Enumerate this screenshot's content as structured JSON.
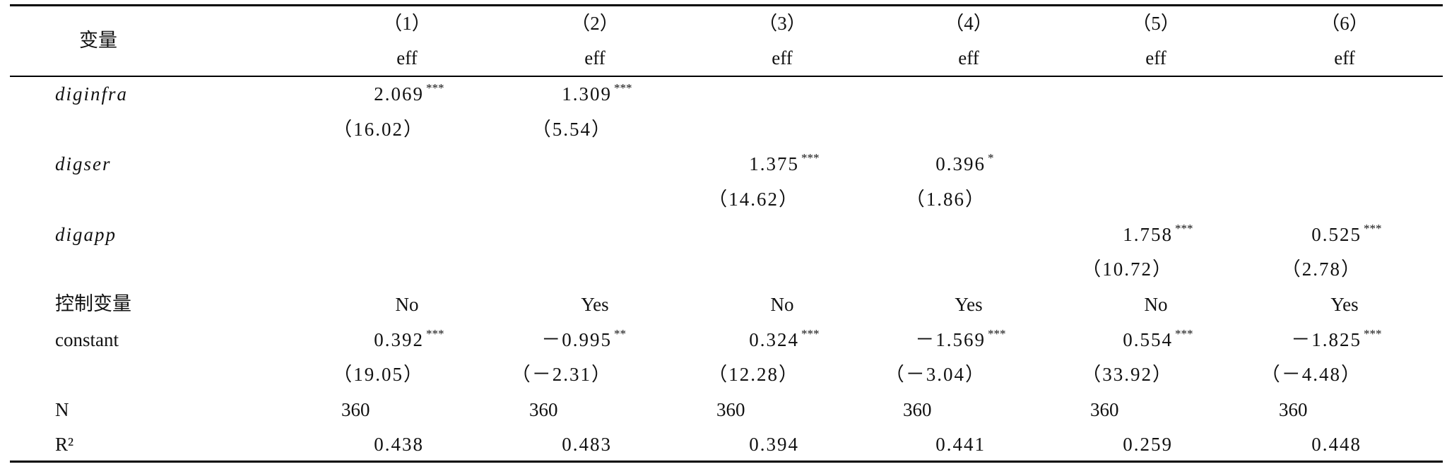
{
  "header": {
    "label": "变量",
    "columns": [
      {
        "number": "（1）",
        "dependent": "eff"
      },
      {
        "number": "（2）",
        "dependent": "eff"
      },
      {
        "number": "（3）",
        "dependent": "eff"
      },
      {
        "number": "（4）",
        "dependent": "eff"
      },
      {
        "number": "（5）",
        "dependent": "eff"
      },
      {
        "number": "（6）",
        "dependent": "eff"
      }
    ]
  },
  "rows": [
    {
      "label": "diginfra",
      "italic": true,
      "cells": [
        {
          "value": "2.069",
          "stars": "***"
        },
        {
          "value": "1.309",
          "stars": "***"
        },
        null,
        null,
        null,
        null
      ]
    },
    {
      "cells": [
        {
          "value": "（16.02）"
        },
        {
          "value": "（5.54）"
        },
        null,
        null,
        null,
        null
      ]
    },
    {
      "label": "digser",
      "italic": true,
      "cells": [
        null,
        null,
        {
          "value": "1.375",
          "stars": "***"
        },
        {
          "value": "0.396",
          "stars": "*"
        },
        null,
        null
      ]
    },
    {
      "cells": [
        null,
        null,
        {
          "value": "（14.62）"
        },
        {
          "value": "（1.86）"
        },
        null,
        null
      ]
    },
    {
      "label": "digapp",
      "italic": true,
      "cells": [
        null,
        null,
        null,
        null,
        {
          "value": "1.758",
          "stars": "***"
        },
        {
          "value": "0.525",
          "stars": "***"
        }
      ]
    },
    {
      "cells": [
        null,
        null,
        null,
        null,
        {
          "value": "（10.72）"
        },
        {
          "value": "（2.78）"
        }
      ]
    },
    {
      "label": "控制变量",
      "align": "center",
      "cells": [
        {
          "value": "No"
        },
        {
          "value": "Yes"
        },
        {
          "value": "No"
        },
        {
          "value": "Yes"
        },
        {
          "value": "No"
        },
        {
          "value": "Yes"
        }
      ]
    },
    {
      "label": "constant",
      "cells": [
        {
          "value": "0.392",
          "stars": "***"
        },
        {
          "value": "－0.995",
          "stars": "**"
        },
        {
          "value": "0.324",
          "stars": "***"
        },
        {
          "value": "－1.569",
          "stars": "***"
        },
        {
          "value": "0.554",
          "stars": "***"
        },
        {
          "value": "－1.825",
          "stars": "***"
        }
      ]
    },
    {
      "cells": [
        {
          "value": "（19.05）"
        },
        {
          "value": "（－2.31）"
        },
        {
          "value": "（12.28）"
        },
        {
          "value": "（－3.04）"
        },
        {
          "value": "（33.92）"
        },
        {
          "value": "（－4.48）"
        }
      ]
    },
    {
      "label": "N",
      "align": "left",
      "cells": [
        {
          "value": "360"
        },
        {
          "value": "360"
        },
        {
          "value": "360"
        },
        {
          "value": "360"
        },
        {
          "value": "360"
        },
        {
          "value": "360"
        }
      ]
    },
    {
      "label": "R²",
      "cells": [
        {
          "value": "0.438"
        },
        {
          "value": "0.483"
        },
        {
          "value": "0.394"
        },
        {
          "value": "0.441"
        },
        {
          "value": "0.259"
        },
        {
          "value": "0.448"
        }
      ]
    }
  ]
}
